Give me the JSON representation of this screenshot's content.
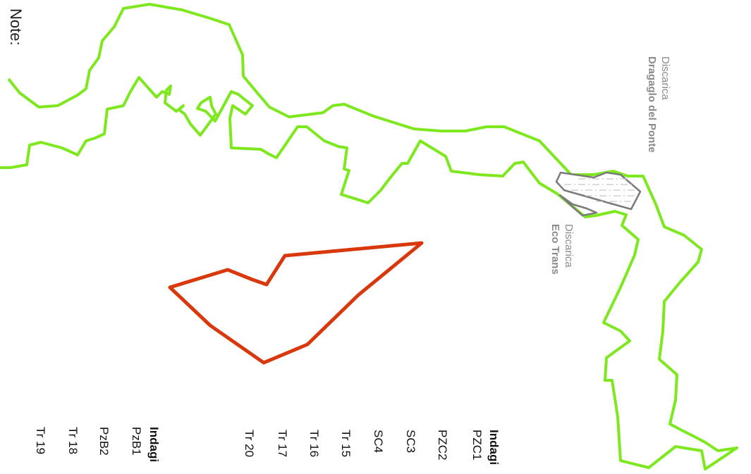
{
  "map": {
    "note_label": "Note:",
    "colors": {
      "boundary": "#7ee81e",
      "area": "#d9380c",
      "landfill_outline": "#7a7a7a",
      "landfill_fill": "#ffffff",
      "label_gray": "#8a8a8a"
    },
    "sites": {
      "draggaglo": {
        "prefix": "Discarica",
        "name": "Dragaglo del Ponte"
      },
      "ecotrans": {
        "prefix": "Discarica",
        "name": "Eco Trans"
      }
    }
  },
  "legend": {
    "group_c": {
      "title": "Indagi",
      "items": [
        "PZC1",
        "PZC2",
        "SC3",
        "SC4",
        "Tr 15",
        "Tr 16",
        "Tr 17",
        "Tr 20"
      ]
    },
    "group_b": {
      "title": "Indagi",
      "items": [
        "PzB1",
        "PzB2",
        "Tr 18",
        "Tr 19"
      ]
    }
  }
}
